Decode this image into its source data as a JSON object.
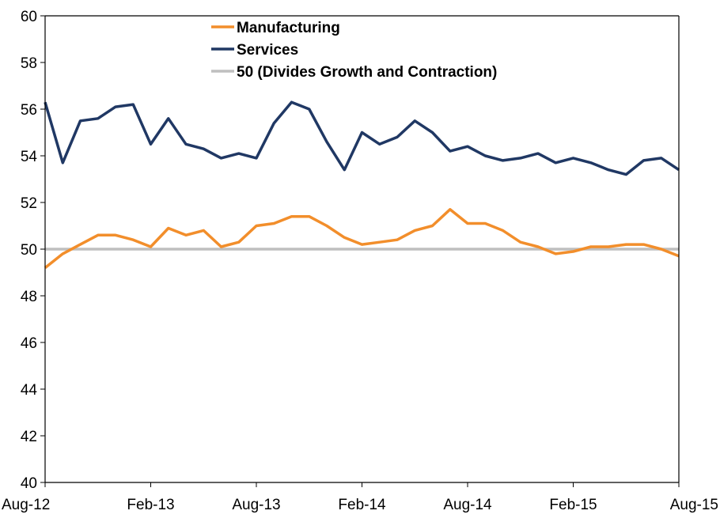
{
  "chart_data": {
    "type": "line",
    "x_tick_labels": [
      "Aug-12",
      "Feb-13",
      "Aug-13",
      "Feb-14",
      "Aug-14",
      "Feb-15",
      "Aug-15"
    ],
    "x": [
      "Aug-12",
      "Sep-12",
      "Oct-12",
      "Nov-12",
      "Dec-12",
      "Jan-13",
      "Feb-13",
      "Mar-13",
      "Apr-13",
      "May-13",
      "Jun-13",
      "Jul-13",
      "Aug-13",
      "Sep-13",
      "Oct-13",
      "Nov-13",
      "Dec-13",
      "Jan-14",
      "Feb-14",
      "Mar-14",
      "Apr-14",
      "May-14",
      "Jun-14",
      "Jul-14",
      "Aug-14",
      "Sep-14",
      "Oct-14",
      "Nov-14",
      "Dec-14",
      "Jan-15",
      "Feb-15",
      "Mar-15",
      "Apr-15",
      "May-15",
      "Jun-15",
      "Jul-15",
      "Aug-15"
    ],
    "ylim": [
      40,
      60
    ],
    "y_ticks": [
      40,
      42,
      44,
      46,
      48,
      50,
      52,
      54,
      56,
      58,
      60
    ],
    "grid": false,
    "legend_position": "top-center",
    "series": [
      {
        "name": "Manufacturing",
        "color": "#f28e2b",
        "values": [
          49.2,
          49.8,
          50.2,
          50.6,
          50.6,
          50.4,
          50.1,
          50.9,
          50.6,
          50.8,
          50.1,
          50.3,
          51.0,
          51.1,
          51.4,
          51.4,
          51.0,
          50.5,
          50.2,
          50.3,
          50.4,
          50.8,
          51.0,
          51.7,
          51.1,
          51.1,
          50.8,
          50.3,
          50.1,
          49.8,
          49.9,
          50.1,
          50.1,
          50.2,
          50.2,
          50.0,
          49.7
        ]
      },
      {
        "name": "Services",
        "color": "#203864",
        "values": [
          56.3,
          53.7,
          55.5,
          55.6,
          56.1,
          56.2,
          54.5,
          55.6,
          54.5,
          54.3,
          53.9,
          54.1,
          53.9,
          55.4,
          56.3,
          56.0,
          54.6,
          53.4,
          55.0,
          54.5,
          54.8,
          55.5,
          55.0,
          54.2,
          54.4,
          54.0,
          53.8,
          53.9,
          54.1,
          53.7,
          53.9,
          53.7,
          53.4,
          53.2,
          53.8,
          53.9,
          53.4
        ]
      },
      {
        "name": "50 (Divides Growth and Contraction)",
        "color": "#bfbfbf",
        "values": [
          50,
          50,
          50,
          50,
          50,
          50,
          50,
          50,
          50,
          50,
          50,
          50,
          50,
          50,
          50,
          50,
          50,
          50,
          50,
          50,
          50,
          50,
          50,
          50,
          50,
          50,
          50,
          50,
          50,
          50,
          50,
          50,
          50,
          50,
          50,
          50,
          50
        ]
      }
    ]
  }
}
